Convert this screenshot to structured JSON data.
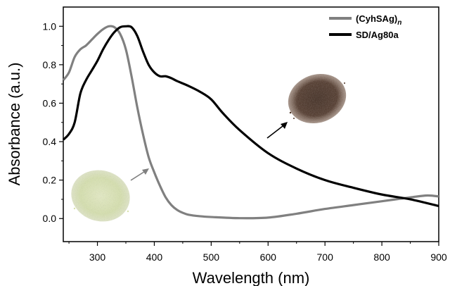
{
  "chart_data": {
    "type": "line",
    "xlabel": "Wavelength (nm)",
    "ylabel": "Absorbance (a.u.)",
    "xlim": [
      240,
      900
    ],
    "ylim": [
      -0.12,
      1.1
    ],
    "x_ticks": [
      300,
      400,
      500,
      600,
      700,
      800,
      900
    ],
    "y_ticks": [
      "0.0",
      "0.2",
      "0.4",
      "0.6",
      "0.8",
      "1.0"
    ],
    "legend_position": "top-right",
    "grid": false,
    "series": [
      {
        "name": "(CyhSAg)n",
        "color": "#808080",
        "points": [
          [
            240,
            0.72
          ],
          [
            250,
            0.76
          ],
          [
            260,
            0.84
          ],
          [
            270,
            0.88
          ],
          [
            280,
            0.9
          ],
          [
            290,
            0.93
          ],
          [
            300,
            0.96
          ],
          [
            310,
            0.985
          ],
          [
            320,
            1.0
          ],
          [
            330,
            0.995
          ],
          [
            340,
            0.96
          ],
          [
            350,
            0.88
          ],
          [
            360,
            0.74
          ],
          [
            370,
            0.58
          ],
          [
            380,
            0.44
          ],
          [
            390,
            0.32
          ],
          [
            400,
            0.24
          ],
          [
            410,
            0.17
          ],
          [
            420,
            0.11
          ],
          [
            430,
            0.07
          ],
          [
            440,
            0.045
          ],
          [
            450,
            0.03
          ],
          [
            460,
            0.02
          ],
          [
            480,
            0.012
          ],
          [
            500,
            0.008
          ],
          [
            550,
            0.002
          ],
          [
            600,
            0.005
          ],
          [
            650,
            0.025
          ],
          [
            700,
            0.05
          ],
          [
            750,
            0.07
          ],
          [
            800,
            0.09
          ],
          [
            850,
            0.11
          ],
          [
            880,
            0.12
          ],
          [
            900,
            0.115
          ]
        ]
      },
      {
        "name": "SD/Ag80a",
        "color": "#000000",
        "points": [
          [
            240,
            0.41
          ],
          [
            250,
            0.44
          ],
          [
            260,
            0.5
          ],
          [
            270,
            0.65
          ],
          [
            280,
            0.72
          ],
          [
            290,
            0.77
          ],
          [
            300,
            0.82
          ],
          [
            310,
            0.88
          ],
          [
            320,
            0.93
          ],
          [
            330,
            0.97
          ],
          [
            340,
            0.995
          ],
          [
            350,
            1.0
          ],
          [
            360,
            0.995
          ],
          [
            370,
            0.95
          ],
          [
            380,
            0.87
          ],
          [
            390,
            0.8
          ],
          [
            400,
            0.76
          ],
          [
            410,
            0.74
          ],
          [
            420,
            0.74
          ],
          [
            430,
            0.73
          ],
          [
            440,
            0.715
          ],
          [
            460,
            0.69
          ],
          [
            480,
            0.66
          ],
          [
            500,
            0.62
          ],
          [
            520,
            0.55
          ],
          [
            550,
            0.46
          ],
          [
            600,
            0.34
          ],
          [
            650,
            0.26
          ],
          [
            700,
            0.2
          ],
          [
            750,
            0.16
          ],
          [
            800,
            0.125
          ],
          [
            850,
            0.1
          ],
          [
            900,
            0.065
          ]
        ]
      }
    ],
    "annotations": {
      "light_powder": "light green powder sample (CyhSAg)n, gray arrow pointing to gray curve",
      "dark_powder": "dark brown powder sample SD/Ag80a, black arrow pointing to black curve"
    }
  },
  "legend": {
    "series1_label": "(CyhSAg)",
    "series1_subscript": "n",
    "series2_label": "SD/Ag80a"
  }
}
